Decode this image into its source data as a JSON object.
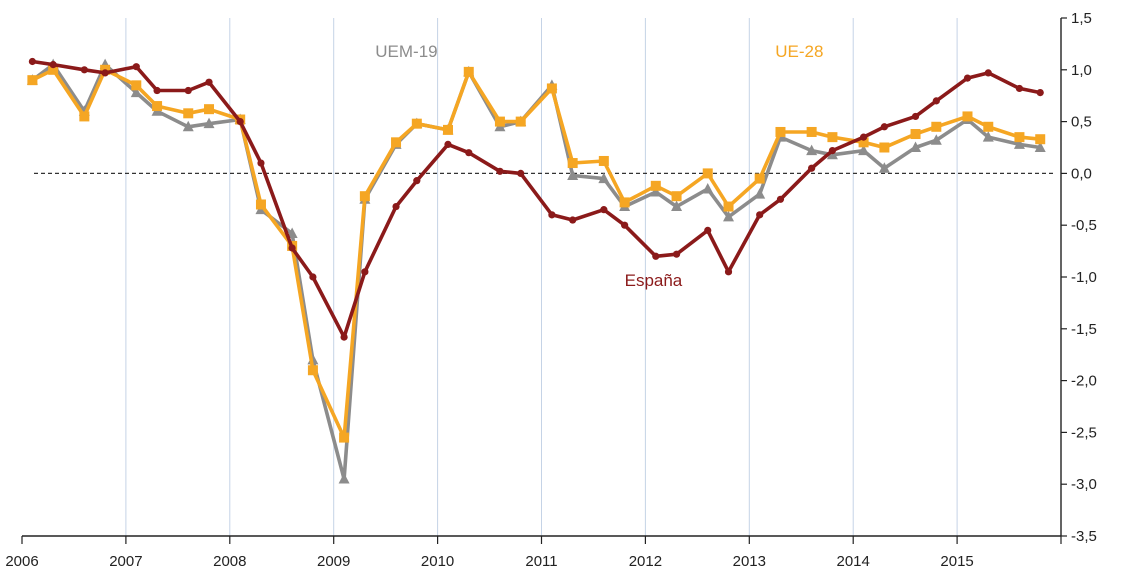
{
  "chart_data": {
    "type": "line",
    "title": "",
    "xlabel": "",
    "ylabel": "",
    "ylim": [
      -3.5,
      1.5
    ],
    "yticks": [
      1.5,
      1.0,
      0.5,
      0.0,
      -0.5,
      -1.0,
      -1.5,
      -2.0,
      -2.5,
      -3.0,
      -3.5
    ],
    "ytick_labels": [
      "1,5",
      "1,0",
      "0,5",
      "0,0",
      "-0,5",
      "-1,0",
      "-1,5",
      "-2,0",
      "-2,5",
      "-3,0",
      "-3,5"
    ],
    "xlim": [
      2006,
      2016
    ],
    "xticks": [
      2006,
      2007,
      2008,
      2009,
      2010,
      2011,
      2012,
      2013,
      2014,
      2015
    ],
    "xtick_labels": [
      "2006",
      "2007",
      "2008",
      "2009",
      "2010",
      "2011",
      "2012",
      "2013",
      "2014",
      "2015"
    ],
    "grid": "vertical lines at years",
    "reference_line": 0.0,
    "y_axis_side": "right",
    "x": [
      2006.1,
      2006.3,
      2006.6,
      2006.8,
      2007.1,
      2007.3,
      2007.6,
      2007.8,
      2008.1,
      2008.3,
      2008.6,
      2008.8,
      2009.1,
      2009.3,
      2009.6,
      2009.8,
      2010.1,
      2010.3,
      2010.6,
      2010.8,
      2011.1,
      2011.3,
      2011.6,
      2011.8,
      2012.1,
      2012.3,
      2012.6,
      2012.8,
      2013.1,
      2013.3,
      2013.6,
      2013.8,
      2014.1,
      2014.3,
      2014.6,
      2014.8,
      2015.1,
      2015.3,
      2015.6,
      2015.8
    ],
    "series": [
      {
        "name": "España",
        "color": "#8b1a1a",
        "marker": "circle",
        "values": [
          1.08,
          1.05,
          1.0,
          0.97,
          1.03,
          0.8,
          0.8,
          0.88,
          0.5,
          0.1,
          -0.72,
          -1.0,
          -1.58,
          -0.95,
          -0.32,
          -0.07,
          0.28,
          0.2,
          0.02,
          0.0,
          -0.4,
          -0.45,
          -0.35,
          -0.5,
          -0.8,
          -0.78,
          -0.55,
          -0.95,
          -0.4,
          -0.25,
          0.05,
          0.22,
          0.35,
          0.45,
          0.55,
          0.7,
          0.92,
          0.97,
          0.82,
          0.78
        ]
      },
      {
        "name": "UE-28",
        "color": "#f5a623",
        "marker": "square",
        "values": [
          0.9,
          1.0,
          0.55,
          1.0,
          0.85,
          0.65,
          0.58,
          0.62,
          0.52,
          -0.3,
          -0.7,
          -1.9,
          -2.55,
          -0.22,
          0.3,
          0.48,
          0.42,
          0.98,
          0.5,
          0.5,
          0.82,
          0.1,
          0.12,
          -0.28,
          -0.12,
          -0.22,
          0.0,
          -0.32,
          -0.05,
          0.4,
          0.4,
          0.35,
          0.3,
          0.25,
          0.38,
          0.45,
          0.55,
          0.45,
          0.35,
          0.33
        ]
      },
      {
        "name": "UEM-19",
        "color": "#8c8c8c",
        "marker": "triangle",
        "values": [
          0.9,
          1.05,
          0.6,
          1.05,
          0.78,
          0.6,
          0.45,
          0.48,
          0.52,
          -0.35,
          -0.58,
          -1.8,
          -2.95,
          -0.25,
          0.28,
          0.48,
          0.42,
          0.98,
          0.45,
          0.5,
          0.85,
          -0.02,
          -0.05,
          -0.32,
          -0.18,
          -0.32,
          -0.15,
          -0.42,
          -0.2,
          0.35,
          0.22,
          0.18,
          0.22,
          0.05,
          0.25,
          0.32,
          0.52,
          0.35,
          0.28,
          0.25
        ]
      }
    ],
    "annotations": [
      {
        "text": "UEM-19",
        "series": "UEM-19"
      },
      {
        "text": "UE-28",
        "series": "UE-28"
      },
      {
        "text": "España",
        "series": "España"
      }
    ]
  }
}
